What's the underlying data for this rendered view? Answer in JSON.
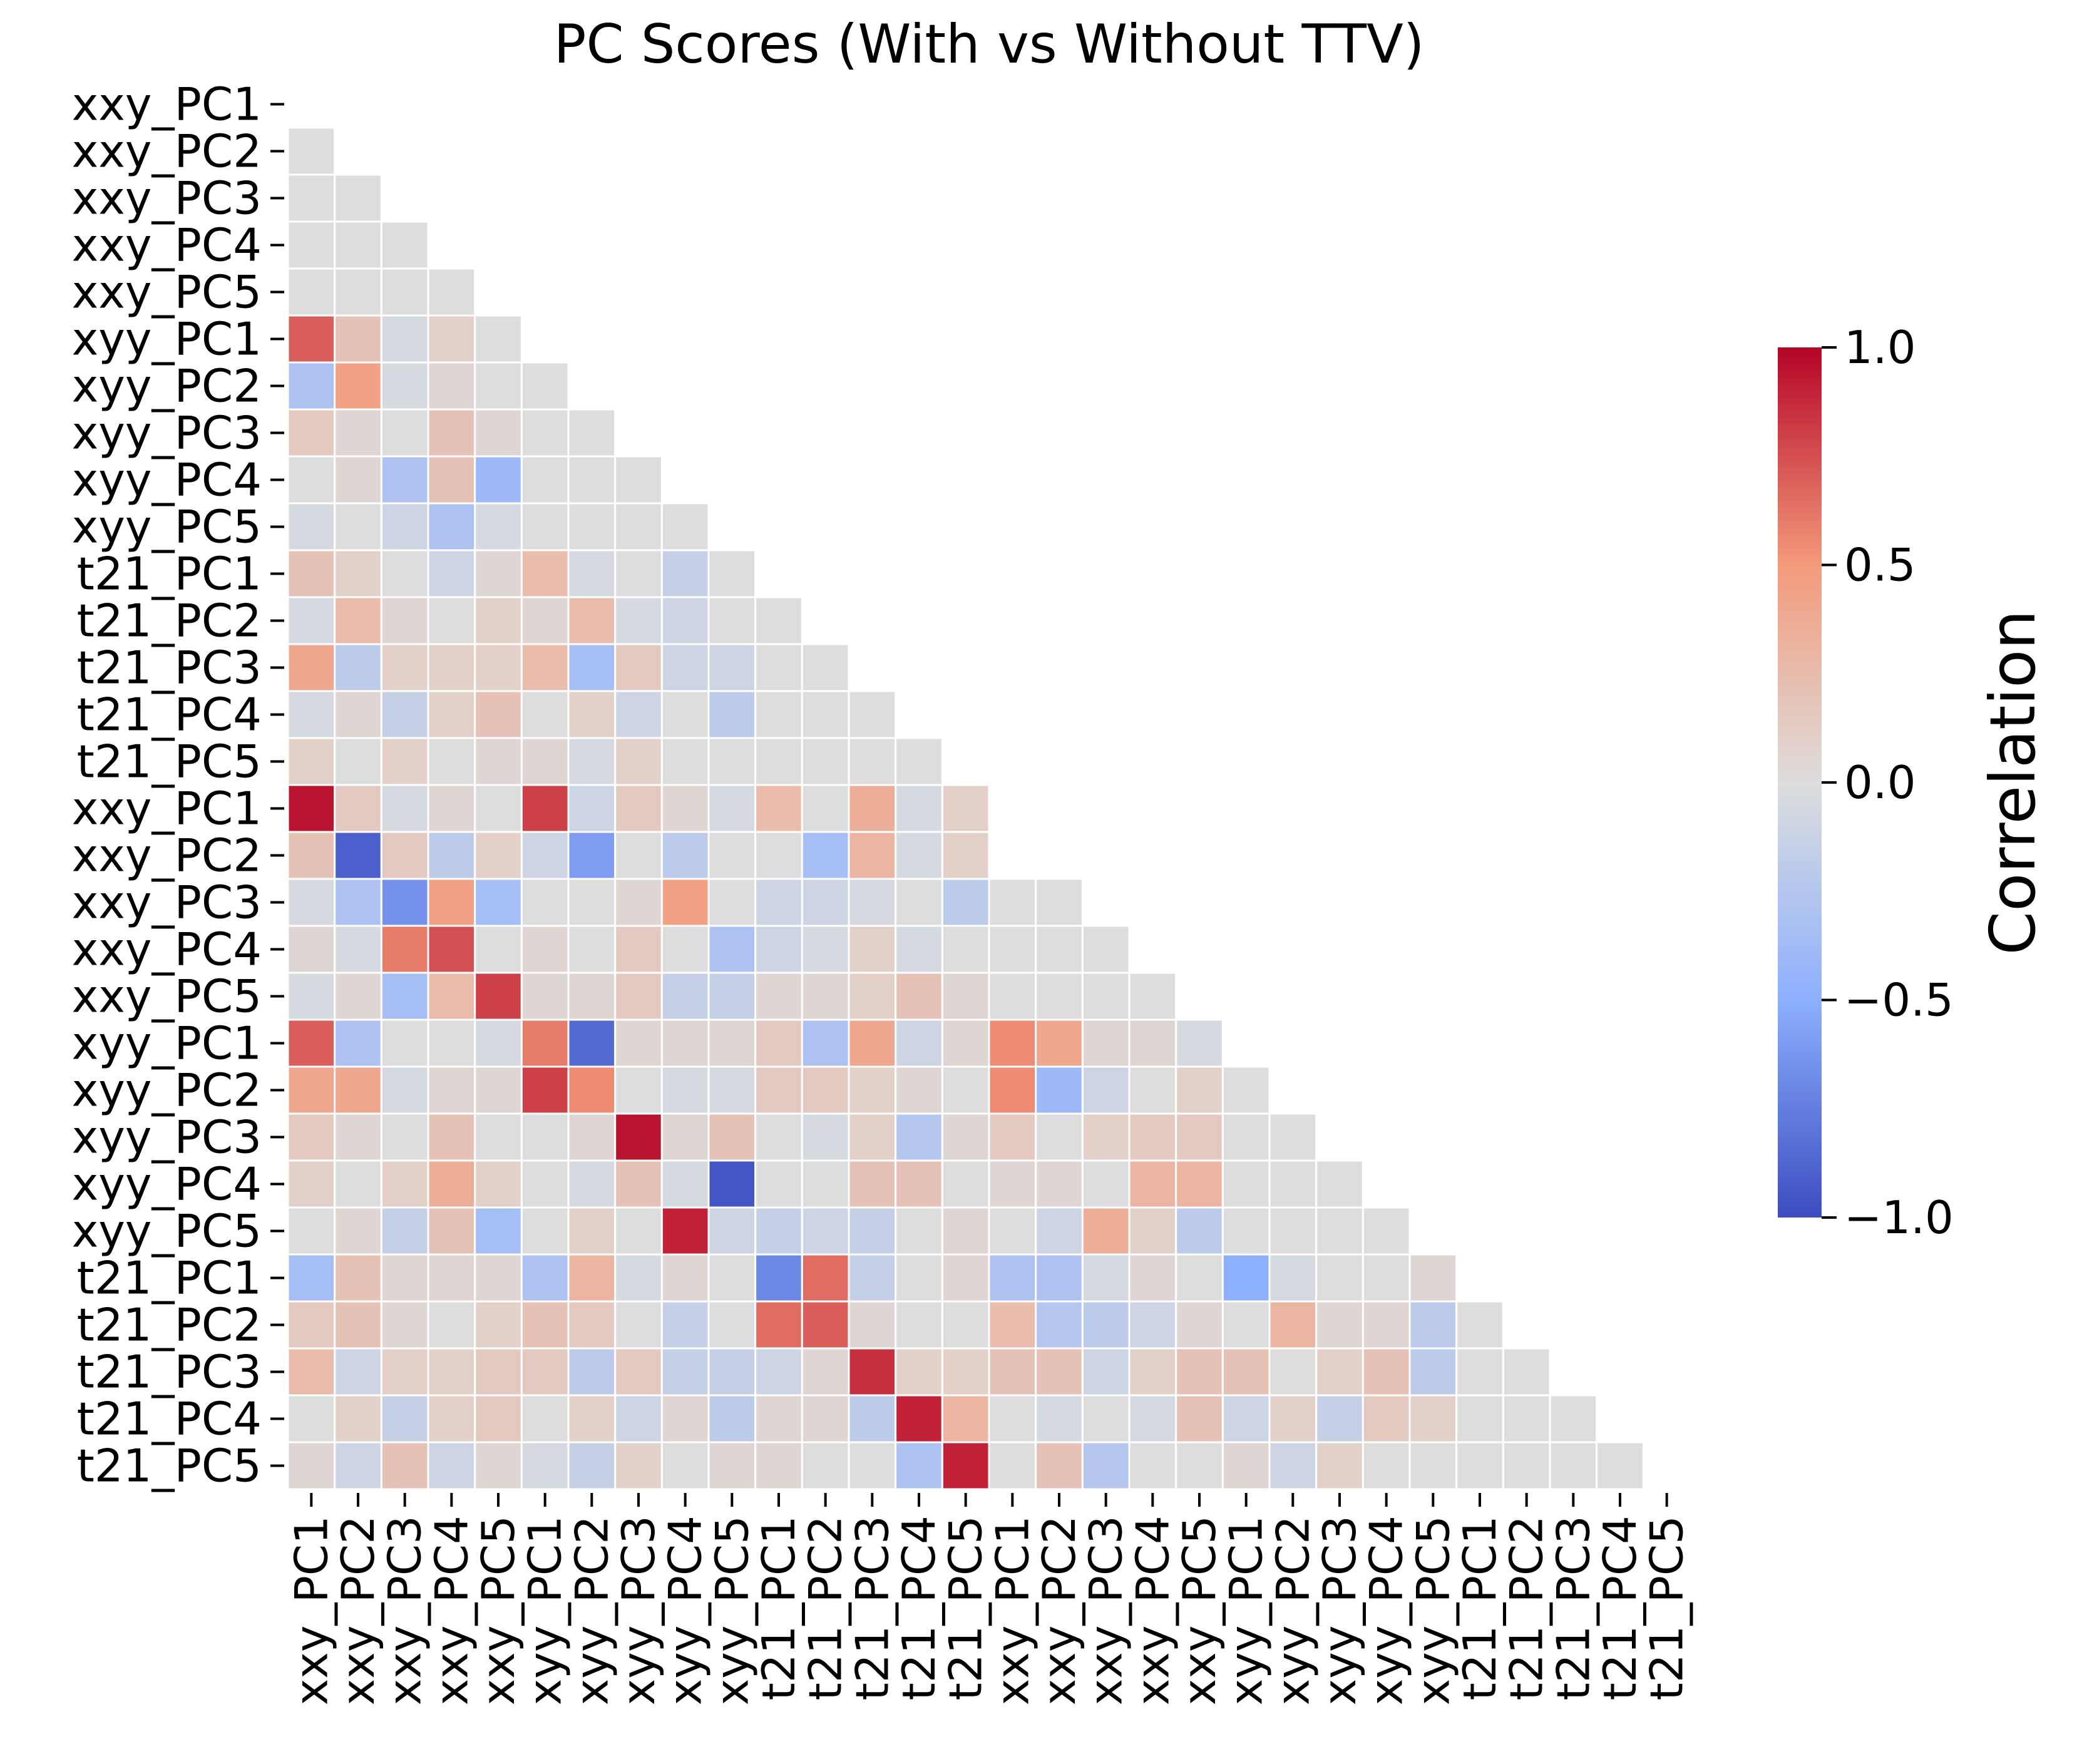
{
  "chart_data": {
    "type": "heatmap",
    "title": "PC Scores (With vs Without TTV)",
    "labels": [
      "xxy_PC1",
      "xxy_PC2",
      "xxy_PC3",
      "xxy_PC4",
      "xxy_PC5",
      "xyy_PC1",
      "xyy_PC2",
      "xyy_PC3",
      "xyy_PC4",
      "xyy_PC5",
      "t21_PC1",
      "t21_PC2",
      "t21_PC3",
      "t21_PC4",
      "t21_PC5",
      "xxy_PC1",
      "xxy_PC2",
      "xxy_PC3",
      "xxy_PC4",
      "xxy_PC5",
      "xyy_PC1",
      "xyy_PC2",
      "xyy_PC3",
      "xyy_PC4",
      "xyy_PC5",
      "t21_PC1",
      "t21_PC2",
      "t21_PC3",
      "t21_PC4",
      "t21_PC5"
    ],
    "mask": "upper triangle including diagonal",
    "matrix": [
      [],
      [
        0.0
      ],
      [
        0.0,
        0.0
      ],
      [
        0.0,
        0.0,
        0.0
      ],
      [
        0.0,
        0.0,
        0.0,
        0.0
      ],
      [
        0.7,
        0.2,
        -0.05,
        0.1,
        0.0
      ],
      [
        -0.3,
        0.45,
        -0.05,
        0.05,
        0.0,
        0.0
      ],
      [
        0.15,
        0.05,
        0.0,
        0.2,
        0.05,
        0.0,
        0.0
      ],
      [
        0.0,
        0.05,
        -0.3,
        0.2,
        -0.4,
        0.0,
        0.0,
        0.0
      ],
      [
        -0.05,
        0.0,
        -0.1,
        -0.3,
        -0.05,
        0.0,
        0.0,
        0.0,
        0.0
      ],
      [
        0.2,
        0.1,
        0.0,
        -0.1,
        0.05,
        0.25,
        -0.05,
        0.0,
        -0.15,
        0.0
      ],
      [
        -0.05,
        0.25,
        0.05,
        0.0,
        0.1,
        0.05,
        0.25,
        -0.05,
        -0.1,
        0.0,
        0.0
      ],
      [
        0.4,
        -0.2,
        0.1,
        0.1,
        0.1,
        0.25,
        -0.35,
        0.15,
        -0.1,
        -0.1,
        0.0,
        0.0
      ],
      [
        -0.05,
        0.05,
        -0.15,
        0.1,
        0.2,
        0.0,
        0.1,
        -0.1,
        0.0,
        -0.2,
        0.0,
        0.0,
        0.0
      ],
      [
        0.1,
        0.0,
        0.1,
        0.0,
        0.05,
        0.05,
        -0.05,
        0.1,
        0.0,
        0.0,
        0.0,
        0.0,
        0.0,
        0.0
      ],
      [
        0.95,
        0.15,
        -0.05,
        0.05,
        0.0,
        0.8,
        -0.1,
        0.15,
        0.05,
        -0.05,
        0.25,
        0.0,
        0.35,
        -0.05,
        0.1
      ],
      [
        0.2,
        -0.9,
        0.15,
        -0.2,
        0.1,
        -0.1,
        -0.6,
        0.0,
        -0.2,
        0.0,
        0.0,
        -0.35,
        0.3,
        -0.05,
        0.1
      ],
      [
        -0.05,
        -0.3,
        -0.65,
        0.45,
        -0.35,
        0.0,
        0.0,
        0.05,
        0.45,
        0.0,
        -0.1,
        -0.1,
        -0.05,
        0.0,
        -0.2,
        0.0,
        0.0
      ],
      [
        0.05,
        -0.05,
        0.6,
        0.75,
        0.0,
        0.05,
        0.0,
        0.15,
        0.0,
        -0.3,
        -0.1,
        -0.05,
        0.1,
        -0.05,
        0.0,
        0.0,
        0.0,
        0.0
      ],
      [
        -0.05,
        0.05,
        -0.35,
        0.25,
        0.8,
        0.05,
        0.05,
        0.15,
        -0.15,
        -0.15,
        0.05,
        0.05,
        0.1,
        0.2,
        0.05,
        0.0,
        0.0,
        0.0,
        0.0
      ],
      [
        0.7,
        -0.3,
        0.0,
        0.0,
        -0.05,
        0.6,
        -0.85,
        0.05,
        0.05,
        0.05,
        0.15,
        -0.3,
        0.4,
        -0.1,
        0.05,
        0.55,
        0.4,
        0.05,
        0.05,
        -0.05
      ],
      [
        0.4,
        0.4,
        -0.05,
        0.05,
        0.05,
        0.8,
        0.55,
        0.0,
        -0.05,
        -0.05,
        0.15,
        0.15,
        0.1,
        0.05,
        0.0,
        0.55,
        -0.4,
        -0.1,
        0.0,
        0.1,
        0.0
      ],
      [
        0.15,
        0.05,
        0.0,
        0.2,
        0.0,
        0.0,
        0.05,
        0.95,
        0.05,
        0.2,
        0.0,
        -0.05,
        0.1,
        -0.25,
        0.05,
        0.15,
        0.0,
        0.1,
        0.15,
        0.15,
        0.0,
        0.0
      ],
      [
        0.1,
        0.0,
        0.1,
        0.35,
        0.1,
        0.0,
        -0.05,
        0.2,
        -0.05,
        -0.95,
        0.0,
        0.0,
        0.2,
        0.2,
        0.0,
        0.05,
        0.05,
        0.0,
        0.3,
        0.3,
        0.0,
        0.0,
        0.0
      ],
      [
        0.0,
        0.05,
        -0.15,
        0.2,
        -0.35,
        0.0,
        0.1,
        0.0,
        0.9,
        -0.1,
        -0.15,
        -0.1,
        -0.15,
        0.0,
        0.05,
        0.0,
        -0.1,
        0.35,
        0.1,
        -0.2,
        0.0,
        0.0,
        0.0,
        0.0
      ],
      [
        -0.35,
        0.2,
        0.05,
        0.05,
        0.05,
        -0.3,
        0.3,
        -0.05,
        0.05,
        0.0,
        -0.7,
        0.65,
        -0.15,
        0.0,
        0.05,
        -0.3,
        -0.3,
        -0.05,
        0.05,
        0.0,
        -0.5,
        -0.05,
        0.0,
        0.0,
        0.05
      ],
      [
        0.15,
        0.2,
        0.05,
        0.0,
        0.1,
        0.2,
        0.15,
        0.0,
        -0.15,
        0.0,
        0.65,
        0.7,
        0.05,
        0.0,
        0.0,
        0.25,
        -0.25,
        -0.2,
        -0.1,
        0.05,
        0.0,
        0.3,
        0.05,
        0.05,
        -0.2,
        0.0
      ],
      [
        0.25,
        -0.1,
        0.1,
        0.1,
        0.15,
        0.15,
        -0.2,
        0.15,
        -0.15,
        -0.15,
        -0.1,
        0.05,
        0.85,
        0.1,
        0.1,
        0.2,
        0.2,
        -0.1,
        0.1,
        0.2,
        0.2,
        0.0,
        0.1,
        0.2,
        -0.2,
        0.0,
        0.0
      ],
      [
        0.0,
        0.1,
        -0.15,
        0.1,
        0.15,
        0.0,
        0.1,
        -0.1,
        0.05,
        -0.2,
        0.05,
        0.05,
        -0.2,
        0.9,
        0.3,
        0.0,
        -0.05,
        0.0,
        -0.05,
        0.2,
        -0.1,
        0.1,
        -0.15,
        0.15,
        0.1,
        0.0,
        0.0,
        0.0
      ],
      [
        0.05,
        -0.1,
        0.2,
        -0.1,
        0.05,
        -0.05,
        -0.15,
        0.1,
        0.0,
        0.05,
        0.05,
        0.0,
        0.0,
        -0.3,
        0.9,
        0.0,
        0.2,
        -0.25,
        0.0,
        0.0,
        0.05,
        -0.1,
        0.1,
        0.0,
        0.0,
        0.0,
        0.0,
        0.0,
        0.0
      ]
    ],
    "colormap": "coolwarm",
    "vmin": -1.0,
    "vmax": 1.0,
    "colorbar": {
      "label": "Correlation",
      "ticks": [
        "1.0",
        "0.5",
        "0.0",
        "−0.5",
        "−1.0"
      ],
      "tick_values": [
        1.0,
        0.5,
        0.0,
        -0.5,
        -1.0
      ]
    }
  }
}
